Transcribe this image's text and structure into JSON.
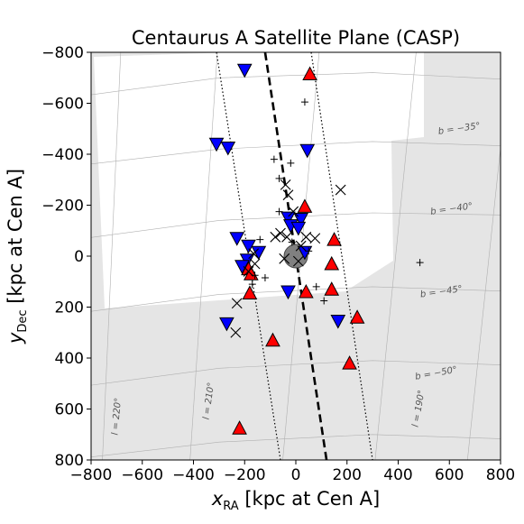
{
  "chart_data": {
    "type": "scatter",
    "title": "Centaurus A Satellite Plane (CASP)",
    "xlabel": {
      "main": "x",
      "sub": "RA",
      "rest": " [kpc at Cen A]"
    },
    "ylabel": {
      "main": "y",
      "sub": "Dec",
      "rest": " [kpc at Cen A]"
    },
    "xlim": [
      -800,
      800
    ],
    "ylim": [
      800,
      -800
    ],
    "xticks": [
      "−800",
      "−600",
      "−400",
      "−200",
      "0",
      "200",
      "400",
      "600",
      "800"
    ],
    "yticks": [
      "−800",
      "−600",
      "−400",
      "−200",
      "0",
      "200",
      "400",
      "600",
      "800"
    ],
    "xtick_values": [
      -800,
      -600,
      -400,
      -200,
      0,
      200,
      400,
      600,
      800
    ],
    "ytick_values": [
      -800,
      -600,
      -400,
      -200,
      0,
      200,
      400,
      600,
      800
    ],
    "grid_labels": [
      {
        "text": "b = −35°",
        "x": 640,
        "y": -490,
        "angle": -8
      },
      {
        "text": "b = −40°",
        "x": 610,
        "y": -175,
        "angle": -8
      },
      {
        "text": "b = −45°",
        "x": 570,
        "y": 150,
        "angle": -8
      },
      {
        "text": "b = −50°",
        "x": 550,
        "y": 470,
        "angle": -10
      },
      {
        "text": "l = 220°",
        "x": -690,
        "y": 630,
        "angle": -85
      },
      {
        "text": "l = 210°",
        "x": -330,
        "y": 570,
        "angle": -82
      },
      {
        "text": "l = 190°",
        "x": 490,
        "y": 600,
        "angle": -80
      }
    ],
    "survey_footprint_fill": "#e5e5e5",
    "plane_line": {
      "x": [
        -120,
        120
      ],
      "y": [
        -800,
        800
      ]
    },
    "plane_bounds": [
      {
        "x": [
          -310,
          -60
        ],
        "y": [
          -800,
          800
        ]
      },
      {
        "x": [
          60,
          300
        ],
        "y": [
          -800,
          800
        ]
      }
    ],
    "center": {
      "x": 0,
      "y": 0,
      "color": "#808080"
    },
    "series": [
      {
        "marker": "triangle-down",
        "color": "#0000ff",
        "points": [
          [
            -200,
            -730
          ],
          [
            -310,
            -440
          ],
          [
            -265,
            -425
          ],
          [
            45,
            -415
          ],
          [
            -30,
            -150
          ],
          [
            -20,
            -120
          ],
          [
            20,
            -145
          ],
          [
            10,
            -110
          ],
          [
            -230,
            -70
          ],
          [
            -185,
            -40
          ],
          [
            -145,
            -15
          ],
          [
            -190,
            15
          ],
          [
            -210,
            40
          ],
          [
            35,
            -15
          ],
          [
            -30,
            140
          ],
          [
            -270,
            265
          ],
          [
            165,
            255
          ]
        ]
      },
      {
        "marker": "triangle-up",
        "color": "#ff0000",
        "points": [
          [
            55,
            -715
          ],
          [
            35,
            -195
          ],
          [
            150,
            -65
          ],
          [
            140,
            30
          ],
          [
            -185,
            50
          ],
          [
            -175,
            70
          ],
          [
            40,
            140
          ],
          [
            140,
            130
          ],
          [
            -180,
            145
          ],
          [
            240,
            240
          ],
          [
            -90,
            330
          ],
          [
            210,
            420
          ],
          [
            -220,
            675
          ]
        ]
      },
      {
        "marker": "x",
        "color": "#000000",
        "points": [
          [
            -40,
            -280
          ],
          [
            -30,
            -240
          ],
          [
            175,
            -260
          ],
          [
            -10,
            -175
          ],
          [
            -60,
            -90
          ],
          [
            -80,
            -75
          ],
          [
            -35,
            -75
          ],
          [
            40,
            -75
          ],
          [
            75,
            -70
          ],
          [
            20,
            -40
          ],
          [
            -165,
            -10
          ],
          [
            -160,
            30
          ],
          [
            -45,
            10
          ],
          [
            10,
            20
          ],
          [
            -185,
            60
          ],
          [
            -230,
            185
          ],
          [
            -235,
            300
          ]
        ]
      },
      {
        "marker": "plus",
        "color": "#000000",
        "points": [
          [
            35,
            -605
          ],
          [
            -85,
            -380
          ],
          [
            -20,
            -365
          ],
          [
            -65,
            -305
          ],
          [
            -65,
            -175
          ],
          [
            -140,
            -65
          ],
          [
            -15,
            -55
          ],
          [
            50,
            -20
          ],
          [
            -160,
            75
          ],
          [
            -120,
            85
          ],
          [
            -170,
            110
          ],
          [
            80,
            120
          ],
          [
            110,
            175
          ],
          [
            485,
            25
          ]
        ]
      }
    ]
  }
}
